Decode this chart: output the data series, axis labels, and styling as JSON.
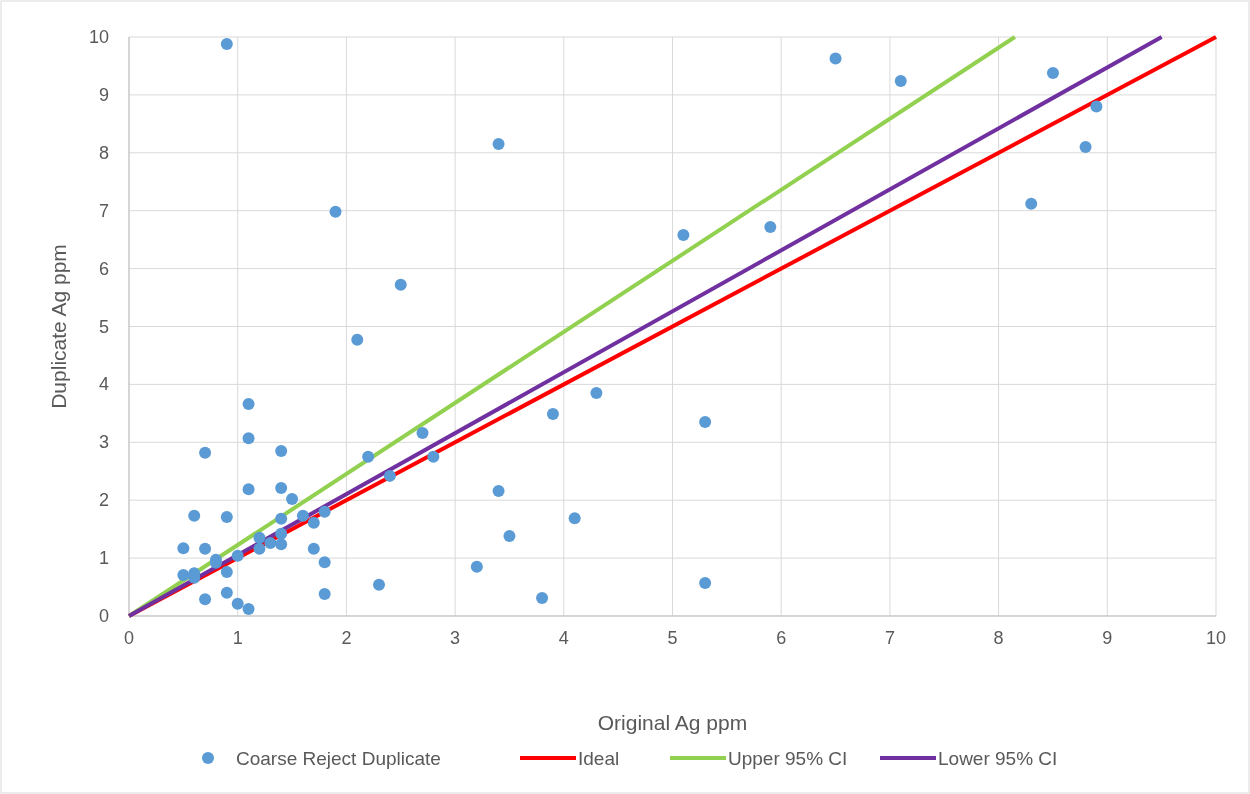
{
  "chart_data": {
    "type": "scatter",
    "xlabel": "Original Ag ppm",
    "ylabel": "Duplicate Ag ppm",
    "xlim": [
      0,
      10
    ],
    "ylim": [
      0,
      10
    ],
    "xticks": [
      0,
      1,
      2,
      3,
      4,
      5,
      6,
      7,
      8,
      9,
      10
    ],
    "yticks": [
      0,
      1,
      2,
      3,
      4,
      5,
      6,
      7,
      8,
      9,
      10
    ],
    "grid": true,
    "legend": "bottom",
    "series": [
      {
        "name": "Coarse Reject Duplicate",
        "marker": "circle",
        "color": "#5b9bd5",
        "x": [
          0.9,
          6.5,
          7.1,
          8.5,
          8.9,
          8.8,
          8.3,
          3.4,
          1.9,
          5.1,
          5.9,
          2.5,
          2.1,
          1.1,
          4.3,
          3.9,
          5.3,
          1.1,
          2.7,
          1.4,
          0.7,
          2.2,
          2.8,
          1.1,
          1.4,
          1.5,
          2.4,
          3.4,
          4.1,
          0.6,
          0.9,
          1.4,
          1.6,
          1.7,
          1.8,
          3.5,
          0.5,
          0.7,
          1.2,
          1.2,
          1.3,
          1.4,
          1.4,
          1.7,
          1.0,
          0.8,
          0.8,
          1.8,
          0.5,
          0.6,
          0.6,
          0.9,
          3.2,
          2.3,
          5.3,
          0.9,
          1.8,
          3.8,
          0.7,
          1.0,
          1.1
        ],
        "values": [
          9.88,
          9.63,
          9.24,
          9.38,
          8.8,
          8.1,
          7.12,
          8.15,
          6.98,
          6.58,
          6.72,
          5.72,
          4.77,
          3.66,
          3.85,
          3.49,
          3.35,
          3.07,
          3.16,
          2.85,
          2.82,
          2.75,
          2.75,
          2.19,
          2.21,
          2.02,
          2.42,
          2.16,
          1.69,
          1.73,
          1.71,
          1.68,
          1.73,
          1.61,
          1.8,
          1.38,
          1.17,
          1.16,
          1.35,
          1.16,
          1.26,
          1.42,
          1.24,
          1.16,
          1.04,
          0.97,
          0.92,
          0.93,
          0.71,
          0.74,
          0.66,
          0.76,
          0.85,
          0.54,
          0.57,
          0.4,
          0.38,
          0.31,
          0.29,
          0.21,
          0.12
        ]
      },
      {
        "name": "Ideal",
        "type": "line",
        "color": "#ff0000",
        "line_style": "solid",
        "x": [
          0,
          10
        ],
        "values": [
          0,
          10
        ]
      },
      {
        "name": "Upper 95% CI",
        "type": "line",
        "color": "#92d050",
        "line_style": "solid",
        "x": [
          0,
          8.15
        ],
        "values": [
          0,
          10
        ]
      },
      {
        "name": "Lower 95% CI",
        "type": "line",
        "color": "#7030a0",
        "line_style": "solid",
        "x": [
          0,
          9.5
        ],
        "values": [
          0,
          10
        ]
      }
    ]
  }
}
